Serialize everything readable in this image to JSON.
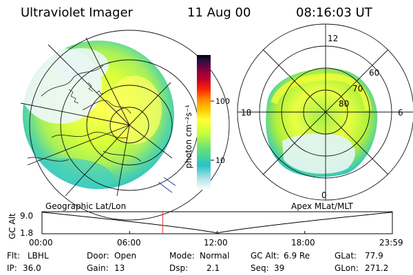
{
  "header": {
    "title": "Ultraviolet Imager",
    "date": "11 Aug 00",
    "time": "08:16:03 UT"
  },
  "colorbar": {
    "label": "photon cm⁻²s⁻¹",
    "ticks": [
      {
        "value": 100,
        "label": "100"
      },
      {
        "value": 10,
        "label": "10"
      }
    ],
    "scale": "log",
    "colors": [
      "#ffffff",
      "#b5e3e8",
      "#27c3c6",
      "#66e07a",
      "#c6ff3a",
      "#ffff33",
      "#ffc400",
      "#ff8a00",
      "#ff2a00",
      "#c0002a",
      "#7a0040",
      "#2a1040",
      "#000000"
    ]
  },
  "left_map": {
    "caption": "Geographic Lat/Lon"
  },
  "right_map": {
    "caption": "Apex MLat/MLT",
    "mlt_labels": {
      "top": "12",
      "left": "18",
      "right": "6",
      "bottom": "0"
    },
    "lat_labels": [
      "60",
      "70",
      "80"
    ]
  },
  "altitude_plot": {
    "ylabel": "GC Alt",
    "yticks": [
      "9.0",
      "1.8"
    ],
    "ymax": 9.0,
    "ymin": 1.8,
    "xticks": [
      "00:00",
      "06:00",
      "12:00",
      "18:00",
      "23:59"
    ],
    "marker_time_hours": 8.27,
    "marker_color": "#e83030"
  },
  "info": {
    "flt": {
      "label": "Flt:",
      "value": "LBHL"
    },
    "ip": {
      "label": "IP:",
      "value": "36.0"
    },
    "door": {
      "label": "Door:",
      "value": "Open"
    },
    "gain": {
      "label": "Gain:",
      "value": "13"
    },
    "mode": {
      "label": "Mode:",
      "value": "Normal"
    },
    "dsp": {
      "label": "Dsp:",
      "value": "2.1"
    },
    "gcalt": {
      "label": "GC Alt:",
      "value": "6.9 Re"
    },
    "seq": {
      "label": "Seq:",
      "value": "39"
    },
    "glat": {
      "label": "GLat:",
      "value": "77.9"
    },
    "glon": {
      "label": "GLon:",
      "value": "271.2"
    }
  }
}
